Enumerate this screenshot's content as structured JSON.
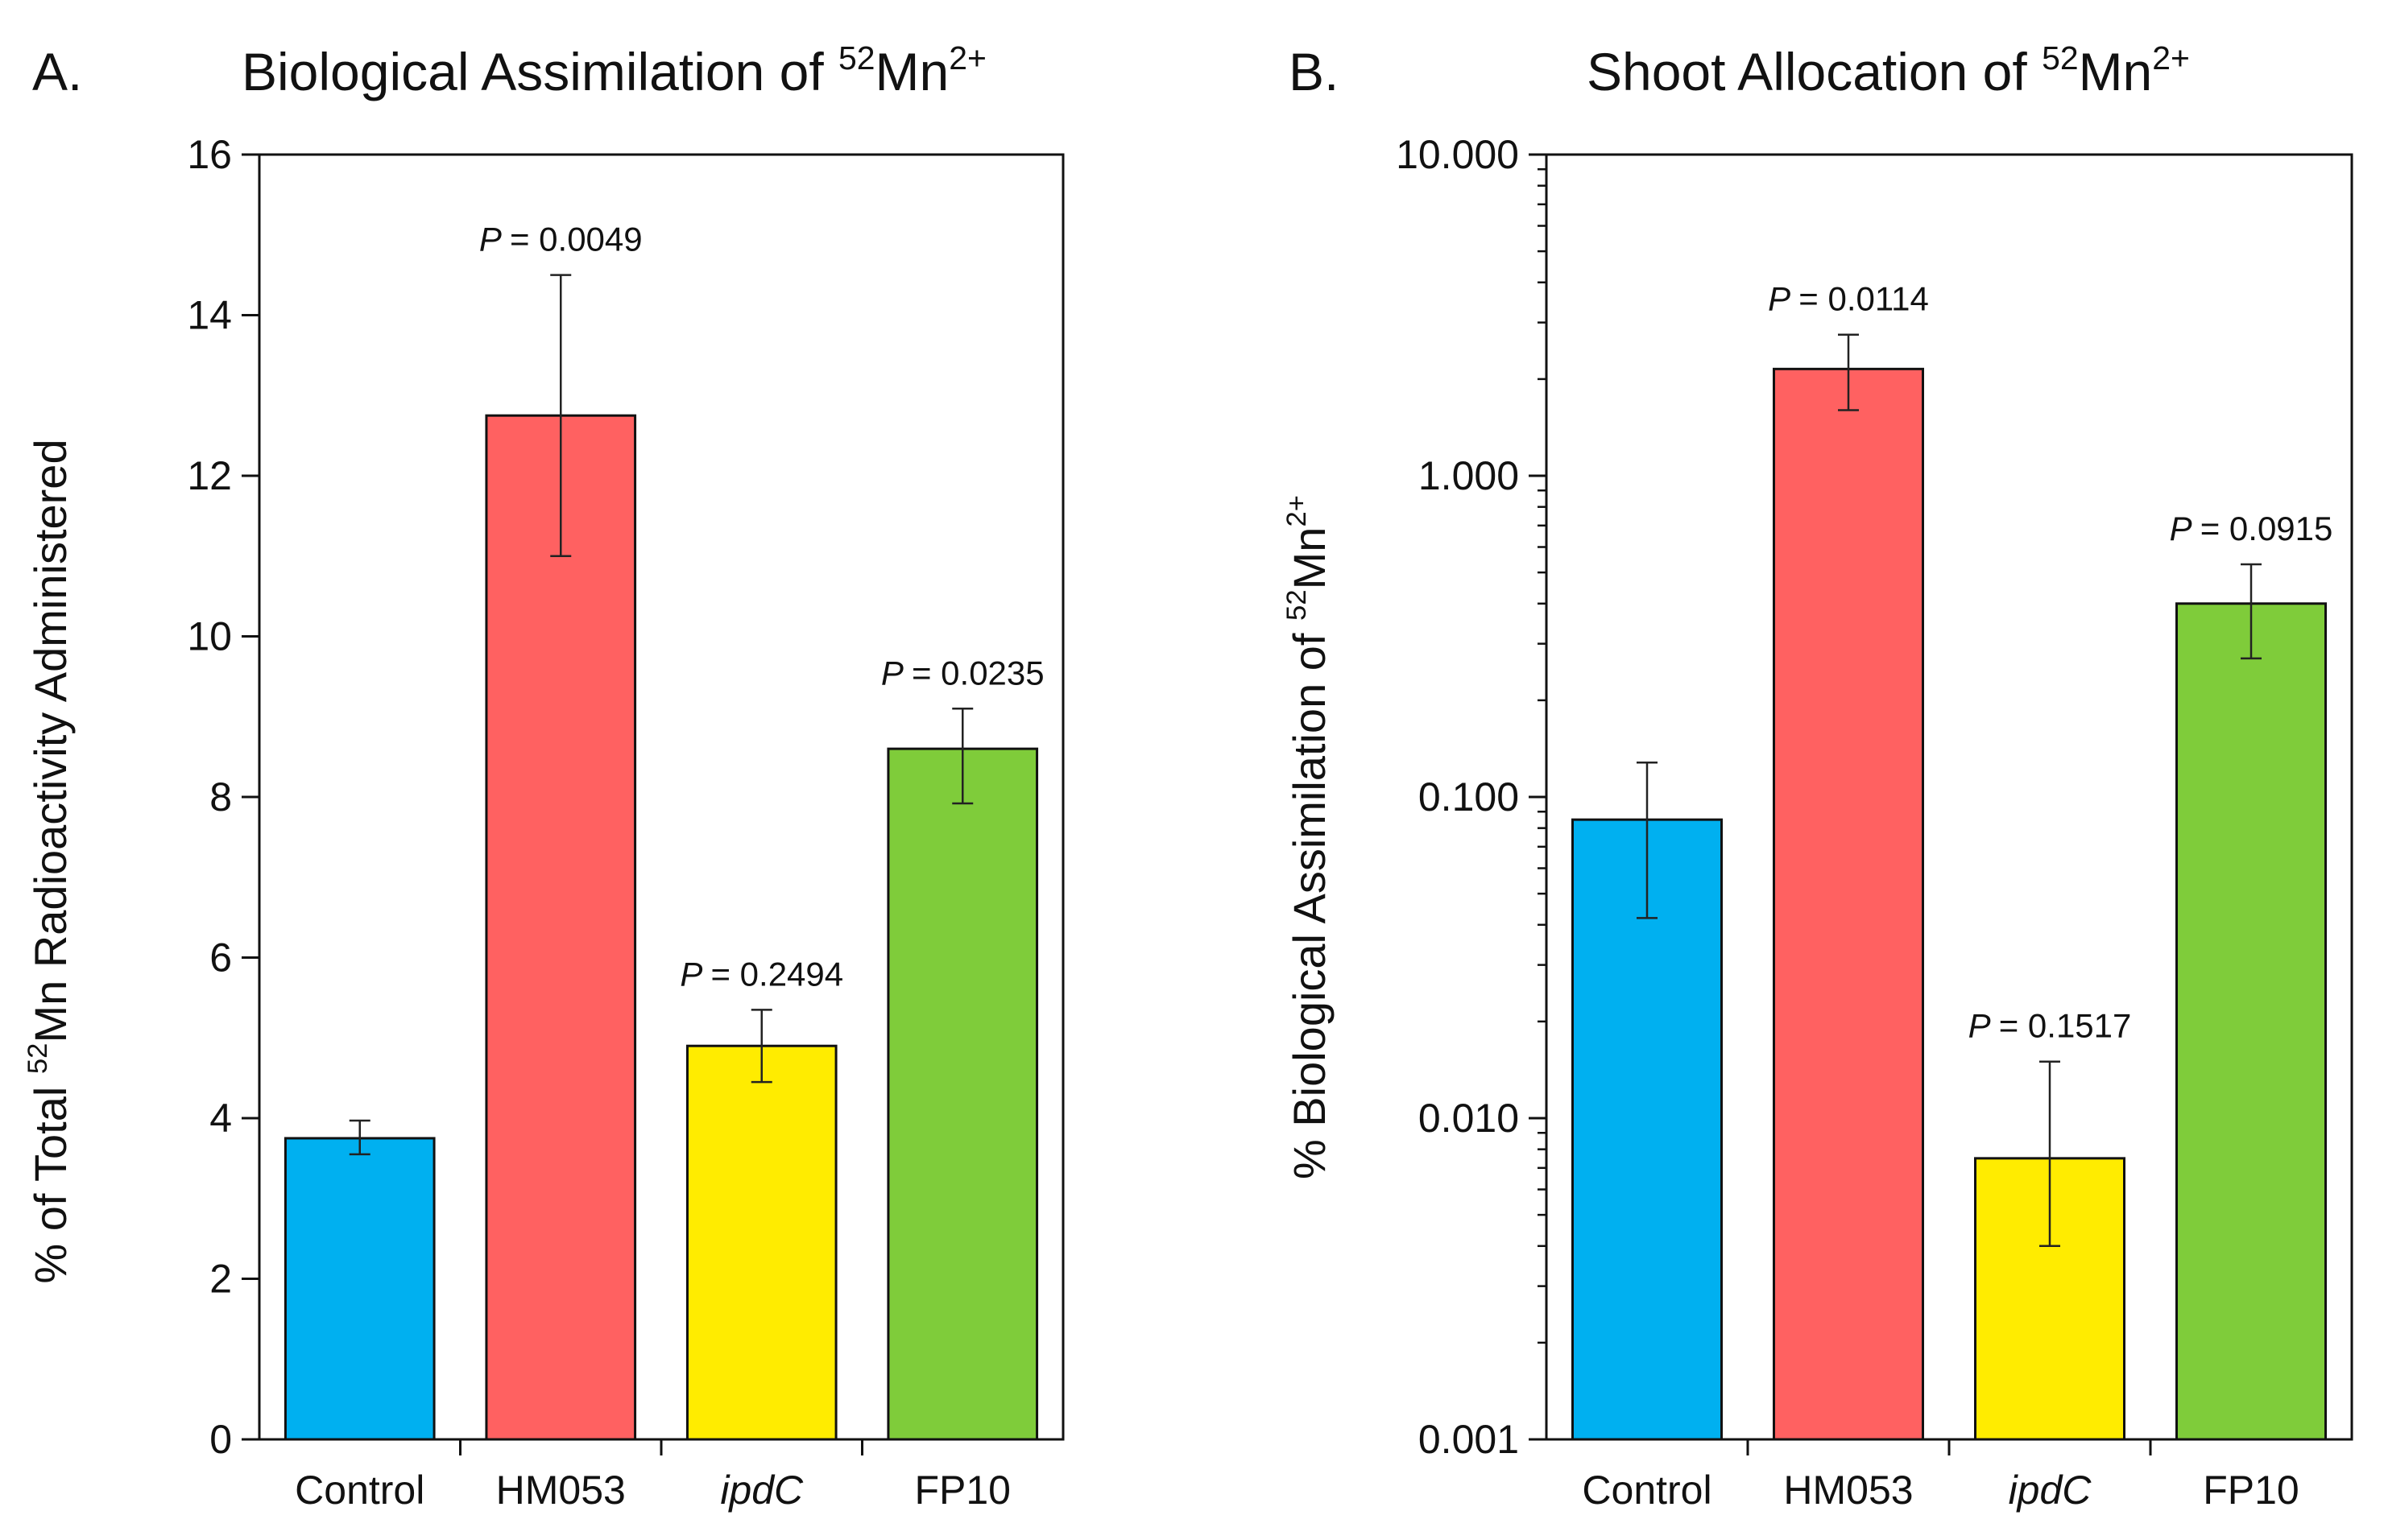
{
  "chart_data": [
    {
      "type": "bar",
      "panel": "A.",
      "title_main": "Biological Assimilation of ",
      "title_iso": "52",
      "title_elem": "Mn",
      "title_charge": "2+",
      "ylabel_pre": "% of Total ",
      "ylabel_iso": "52",
      "ylabel_post": "Mn Radioactivity Administered",
      "yscale": "linear",
      "ylim": [
        0,
        16
      ],
      "yticks": [
        "0",
        "2",
        "4",
        "6",
        "8",
        "10",
        "12",
        "14",
        "16"
      ],
      "categories": [
        "Control",
        "HM053",
        "ipdC",
        "FP10"
      ],
      "category_italic": [
        false,
        false,
        true,
        false
      ],
      "values": [
        3.75,
        12.75,
        4.9,
        8.6
      ],
      "err_low": [
        3.55,
        11.0,
        4.45,
        7.92
      ],
      "err_high": [
        3.97,
        14.5,
        5.35,
        9.1
      ],
      "annotation_prefix": "P",
      "annotations": [
        "",
        "= 0.0049",
        "= 0.2494",
        "= 0.0235"
      ],
      "colors": [
        "#00b0f0",
        "#ff6161",
        "#ffec00",
        "#7fcc3a"
      ]
    },
    {
      "type": "bar",
      "panel": "B.",
      "title_main": "Shoot Allocation of ",
      "title_iso": "52",
      "title_elem": "Mn",
      "title_charge": "2+",
      "ylabel_pre": "% Biological Assimilation of ",
      "ylabel_iso": "52",
      "ylabel_post": "Mn",
      "ylabel_charge": "2+",
      "yscale": "log",
      "ylim": [
        0.001,
        10
      ],
      "yticks": [
        "0.001",
        "0.010",
        "0.100",
        "1.000",
        "10.000"
      ],
      "categories": [
        "Control",
        "HM053",
        "ipdC",
        "FP10"
      ],
      "category_italic": [
        false,
        false,
        true,
        false
      ],
      "values": [
        0.085,
        2.15,
        0.0075,
        0.4
      ],
      "err_low": [
        0.042,
        1.6,
        0.004,
        0.27
      ],
      "err_high": [
        0.128,
        2.75,
        0.015,
        0.53
      ],
      "annotation_prefix": "P",
      "annotations": [
        "",
        "= 0.0114",
        "= 0.1517",
        "= 0.0915"
      ],
      "colors": [
        "#00b0f0",
        "#ff6161",
        "#ffec00",
        "#7fcc3a"
      ]
    }
  ]
}
